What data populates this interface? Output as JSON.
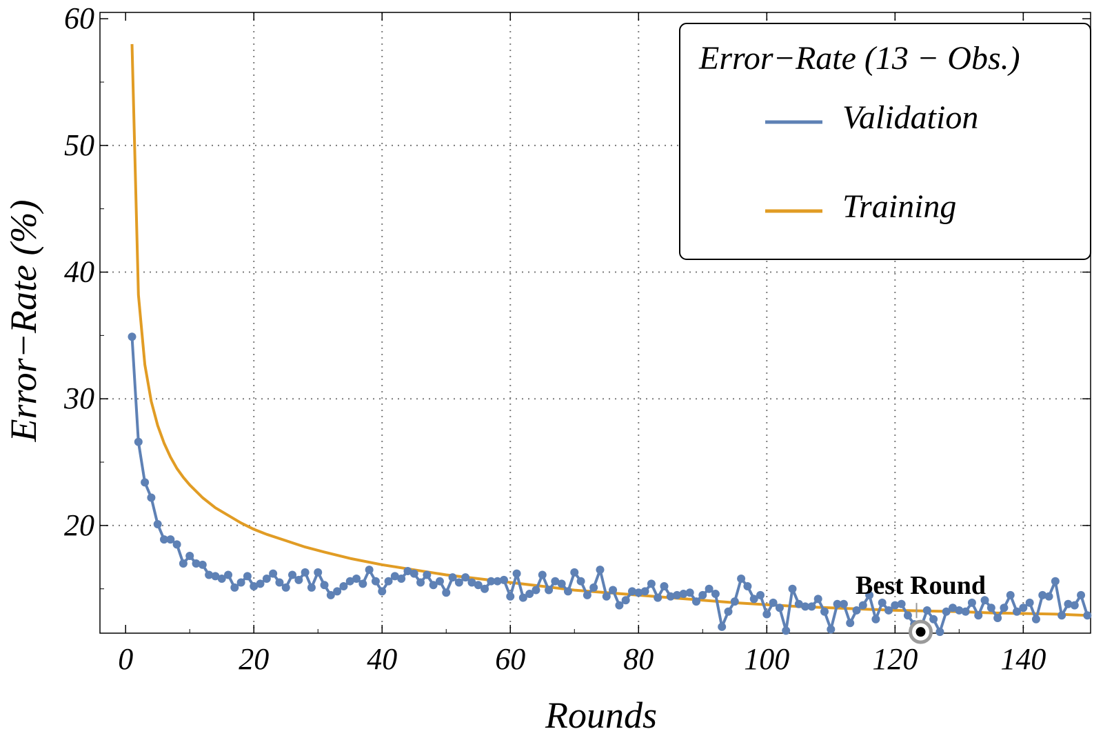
{
  "chart_data": {
    "type": "line",
    "title": "",
    "xlabel": "Rounds",
    "ylabel": "Error−Rate (%)",
    "xlim": [
      -4,
      150.5
    ],
    "ylim": [
      11.5,
      60.5
    ],
    "xticks": [
      0,
      20,
      40,
      60,
      80,
      100,
      120,
      140
    ],
    "yticks": [
      20,
      30,
      40,
      50,
      60
    ],
    "grid": true,
    "legend": {
      "position": "top-right",
      "title": "Error−Rate (13 − Obs.)"
    },
    "series": [
      {
        "name": "Validation",
        "color": "#5E81B5",
        "markers": true,
        "x": [
          1,
          2,
          3,
          4,
          5,
          6,
          7,
          8,
          9,
          10,
          11,
          12,
          13,
          14,
          15,
          16,
          17,
          18,
          19,
          20,
          21,
          22,
          23,
          24,
          25,
          26,
          27,
          28,
          29,
          30,
          31,
          32,
          33,
          34,
          35,
          36,
          37,
          38,
          39,
          40,
          41,
          42,
          43,
          44,
          45,
          46,
          47,
          48,
          49,
          50,
          51,
          52,
          53,
          54,
          55,
          56,
          57,
          58,
          59,
          60,
          61,
          62,
          63,
          64,
          65,
          66,
          67,
          68,
          69,
          70,
          71,
          72,
          73,
          74,
          75,
          76,
          77,
          78,
          79,
          80,
          81,
          82,
          83,
          84,
          85,
          86,
          87,
          88,
          89,
          90,
          91,
          92,
          93,
          94,
          95,
          96,
          97,
          98,
          99,
          100,
          101,
          102,
          103,
          104,
          105,
          106,
          107,
          108,
          109,
          110,
          111,
          112,
          113,
          114,
          115,
          116,
          117,
          118,
          119,
          120,
          121,
          122,
          123,
          124,
          125,
          126,
          127,
          128,
          129,
          130,
          131,
          132,
          133,
          134,
          135,
          136,
          137,
          138,
          139,
          140,
          141,
          142,
          143,
          144,
          145,
          146,
          147,
          148,
          149,
          150
        ],
        "y": [
          34.9,
          26.6,
          23.4,
          22.2,
          20.1,
          18.9,
          18.9,
          18.5,
          17.0,
          17.6,
          17.0,
          16.9,
          16.1,
          16.0,
          15.8,
          16.1,
          15.1,
          15.5,
          16.0,
          15.2,
          15.4,
          15.8,
          16.2,
          15.5,
          15.1,
          16.1,
          15.7,
          16.3,
          15.1,
          16.3,
          15.3,
          14.5,
          14.8,
          15.2,
          15.6,
          15.8,
          15.4,
          16.5,
          15.6,
          14.8,
          15.6,
          16.0,
          15.8,
          16.4,
          16.2,
          15.5,
          16.1,
          15.3,
          15.6,
          14.7,
          15.9,
          15.5,
          15.9,
          15.5,
          15.3,
          15.0,
          15.6,
          15.6,
          15.7,
          14.4,
          16.2,
          14.3,
          14.6,
          14.9,
          16.1,
          14.9,
          15.6,
          15.4,
          14.8,
          16.3,
          15.6,
          14.5,
          15.1,
          16.5,
          14.4,
          14.9,
          13.7,
          14.1,
          14.8,
          14.7,
          14.8,
          15.4,
          14.3,
          15.2,
          14.4,
          14.5,
          14.6,
          14.7,
          14.0,
          14.5,
          15.0,
          14.6,
          12.0,
          13.2,
          14.0,
          15.8,
          15.2,
          14.2,
          14.5,
          13.0,
          13.9,
          13.5,
          11.7,
          15.0,
          13.8,
          13.6,
          13.6,
          14.2,
          13.2,
          11.8,
          13.8,
          13.8,
          12.3,
          13.3,
          13.7,
          14.5,
          12.6,
          13.9,
          13.3,
          13.7,
          13.8,
          12.9,
          12.2,
          11.9,
          13.3,
          12.6,
          11.6,
          13.2,
          13.5,
          13.3,
          13.2,
          13.9,
          12.9,
          14.1,
          13.5,
          12.7,
          13.5,
          14.5,
          13.2,
          13.5,
          13.9,
          12.6,
          14.5,
          14.4,
          15.6,
          12.9,
          13.8,
          13.7,
          14.5,
          12.9
        ]
      },
      {
        "name": "Training",
        "color": "#E19C24",
        "markers": false,
        "x": [
          1,
          2,
          3,
          4,
          5,
          6,
          7,
          8,
          9,
          10,
          12,
          14,
          16,
          18,
          20,
          22,
          25,
          28,
          31,
          35,
          40,
          45,
          50,
          55,
          60,
          65,
          70,
          75,
          80,
          85,
          90,
          95,
          100,
          105,
          110,
          115,
          120,
          125,
          130,
          135,
          140,
          145,
          150
        ],
        "y": [
          58.0,
          38.2,
          32.7,
          29.8,
          27.9,
          26.5,
          25.4,
          24.5,
          23.8,
          23.2,
          22.2,
          21.4,
          20.8,
          20.2,
          19.7,
          19.3,
          18.8,
          18.3,
          17.9,
          17.4,
          16.9,
          16.5,
          16.1,
          15.8,
          15.5,
          15.2,
          14.9,
          14.7,
          14.5,
          14.3,
          14.1,
          13.9,
          13.75,
          13.6,
          13.5,
          13.4,
          13.3,
          13.25,
          13.2,
          13.1,
          13.05,
          13.0,
          12.9
        ]
      }
    ],
    "annotations": [
      {
        "label": "Best Round",
        "x": 124,
        "y": 11.6
      }
    ]
  }
}
